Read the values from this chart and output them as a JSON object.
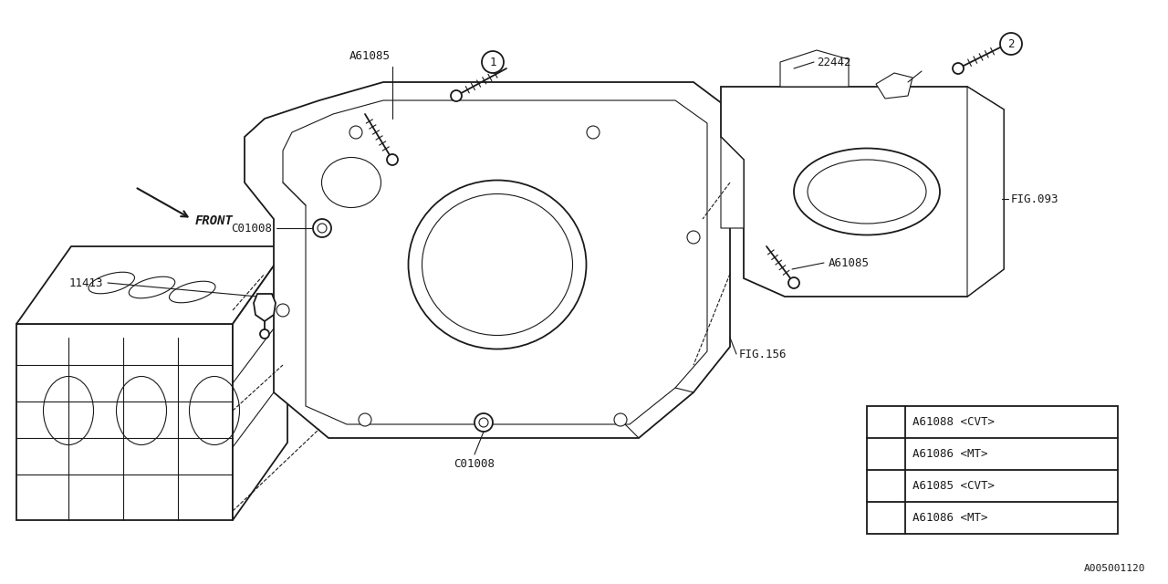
{
  "bg_color": "#ffffff",
  "line_color": "#1a1a1a",
  "fig_width": 12.8,
  "fig_height": 6.4,
  "labels": {
    "front_arrow": "FRONT",
    "label_11413": "11413",
    "label_c01008_top": "C01008",
    "label_c01008_bot": "C01008",
    "label_a61085_top": "A61085",
    "label_a61085_right": "A61085",
    "label_22442": "22442",
    "label_fig093": "FIG.093",
    "label_fig156": "FIG.156",
    "watermark": "A005001120"
  },
  "legend_entries": [
    {
      "circle_num": "1",
      "row1": "A61086 <MT>",
      "row2": "A61085 <CVT>"
    },
    {
      "circle_num": "2",
      "row1": "A61086 <MT>",
      "row2": "A61088 <CVT>"
    }
  ]
}
